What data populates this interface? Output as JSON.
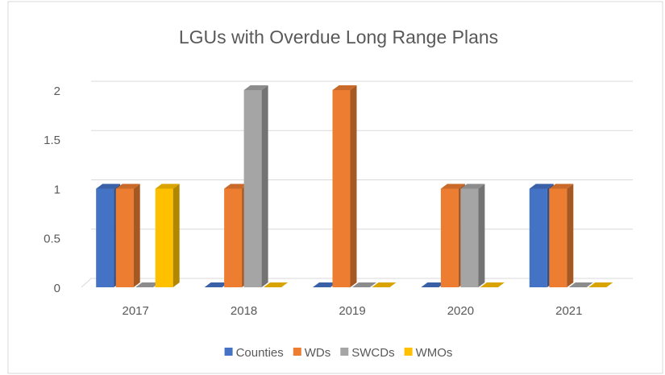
{
  "chart_data": {
    "type": "bar3d",
    "title": "LGUs with Overdue Long Range Plans",
    "categories": [
      "2017",
      "2018",
      "2019",
      "2020",
      "2021"
    ],
    "series": [
      {
        "name": "Counties",
        "color": "#4472c4",
        "values": [
          1,
          0,
          0,
          0,
          1
        ]
      },
      {
        "name": "WDs",
        "color": "#ed7d31",
        "values": [
          1,
          1,
          2,
          1,
          1
        ]
      },
      {
        "name": "SWCDs",
        "color": "#a5a5a5",
        "values": [
          0,
          2,
          0,
          1,
          0
        ]
      },
      {
        "name": "WMOs",
        "color": "#ffc000",
        "values": [
          1,
          0,
          0,
          0,
          0
        ]
      }
    ],
    "ylim": [
      0,
      2
    ],
    "yticks": [
      0,
      0.5,
      1,
      1.5,
      2
    ],
    "grid": true,
    "legend": "bottom"
  }
}
